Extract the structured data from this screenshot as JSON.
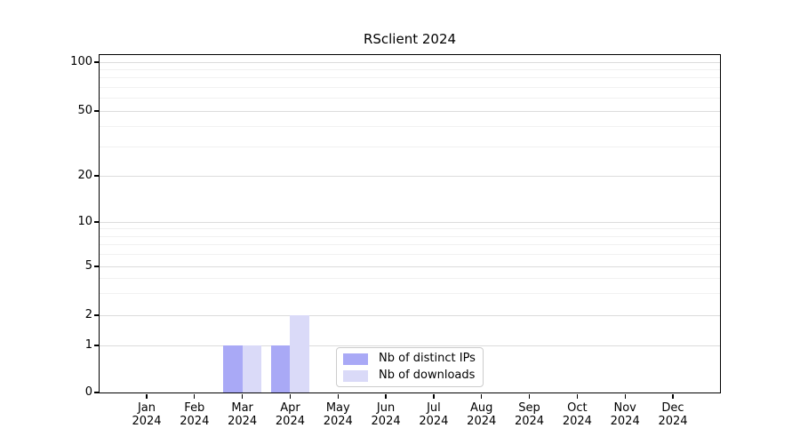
{
  "chart_data": {
    "type": "bar",
    "title": "RSclient 2024",
    "categories": [
      "Jan 2024",
      "Feb 2024",
      "Mar 2024",
      "Apr 2024",
      "May 2024",
      "Jun 2024",
      "Jul 2024",
      "Aug 2024",
      "Sep 2024",
      "Oct 2024",
      "Nov 2024",
      "Dec 2024"
    ],
    "series": [
      {
        "name": "Nb of distinct IPs",
        "color": "#a9a9f6",
        "values": [
          0,
          0,
          1,
          1,
          0,
          0,
          0,
          0,
          0,
          0,
          0,
          0
        ]
      },
      {
        "name": "Nb of downloads",
        "color": "#dadaf8",
        "values": [
          0,
          0,
          1,
          2,
          0,
          0,
          0,
          0,
          0,
          0,
          0,
          0
        ]
      }
    ],
    "y_axis": {
      "scale": "log-like",
      "ticks": [
        0,
        1,
        2,
        5,
        10,
        20,
        50,
        100
      ],
      "minor_gridlines": [
        3,
        4,
        6,
        7,
        8,
        9,
        30,
        40,
        60,
        70,
        80,
        90
      ],
      "range": [
        0,
        110
      ]
    },
    "x_axis": {
      "tick_label_lines": 2
    },
    "legend": {
      "position": "lower center"
    },
    "grid": true
  },
  "colors": {
    "bar_distinct_ips": "#a9a9f6",
    "bar_downloads": "#dadaf8",
    "grid_major": "#dcdcdc",
    "grid_minor": "#f1f1f1",
    "spine": "#000000",
    "text": "#000000",
    "legend_border": "#cccccc",
    "legend_background": "#ffffff"
  }
}
